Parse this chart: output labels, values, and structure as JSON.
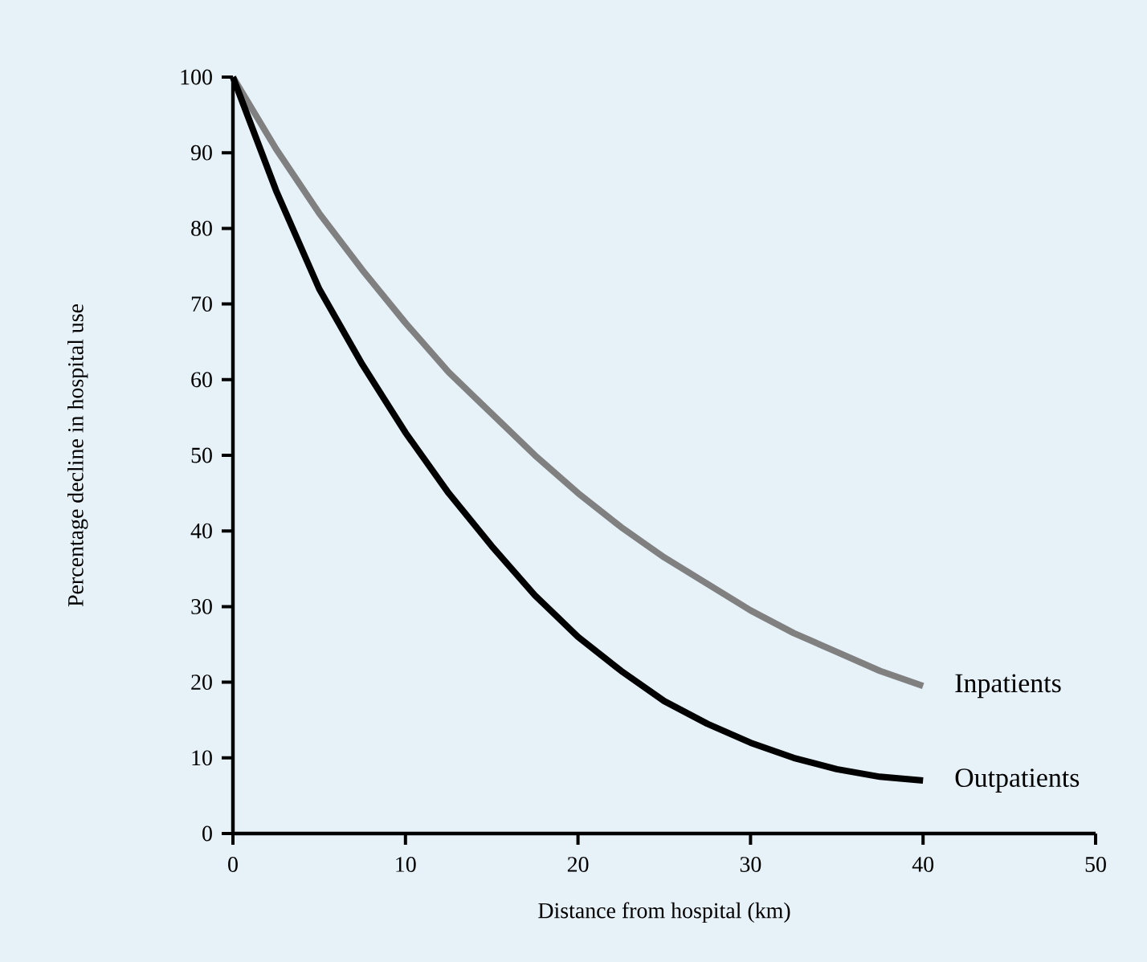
{
  "chart_data": {
    "type": "line",
    "xlabel": "Distance from hospital (km)",
    "ylabel": "Percentage decline in hospital use",
    "x": [
      0,
      2.5,
      5,
      7.5,
      10,
      12.5,
      15,
      17.5,
      20,
      22.5,
      25,
      27.5,
      30,
      32.5,
      35,
      37.5,
      40
    ],
    "series": [
      {
        "name": "Inpatients",
        "color": "#808080",
        "values": [
          100,
          90.5,
          82,
          74.5,
          67.5,
          61,
          55.5,
          50,
          45,
          40.5,
          36.5,
          33,
          29.5,
          26.5,
          24,
          21.5,
          19.5
        ]
      },
      {
        "name": "Outpatients",
        "color": "#000000",
        "values": [
          100,
          85,
          72,
          62,
          53,
          45,
          38,
          31.5,
          26,
          21.5,
          17.5,
          14.5,
          12,
          10,
          8.5,
          7.5,
          7
        ]
      }
    ],
    "xlim": [
      0,
      50
    ],
    "xticks": [
      0,
      10,
      20,
      30,
      40,
      50
    ],
    "ylim": [
      0,
      100
    ],
    "yticks": [
      0,
      10,
      20,
      30,
      40,
      50,
      60,
      70,
      80,
      90,
      100
    ],
    "grid": false,
    "legend": false,
    "marker": "none",
    "line_style": "solid"
  }
}
